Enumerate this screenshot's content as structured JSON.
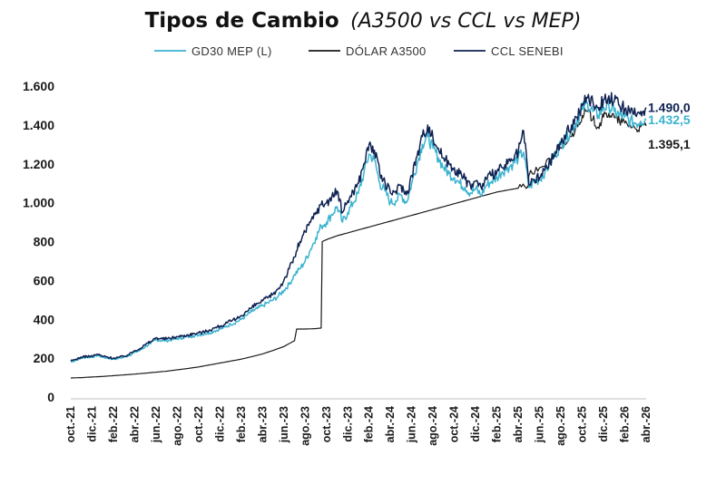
{
  "chart_data": {
    "type": "line",
    "title": "Tipos de Cambio",
    "subtitle": "(A3500 vs CCL vs MEP)",
    "xlabel": "",
    "ylabel": "",
    "ylim": [
      0,
      1600
    ],
    "yticks": [
      0,
      200,
      400,
      600,
      800,
      "1.000",
      "1.200",
      "1.400",
      "1.600"
    ],
    "ytick_labels": [
      "0",
      "200",
      "400",
      "600",
      "800",
      "1.000",
      "1.200",
      "1.400",
      "1.600"
    ],
    "x_start": "2021-10",
    "x_end": "2026-04",
    "xtick_labels": [
      "oct.-21",
      "dic.-21",
      "feb.-22",
      "abr.-22",
      "jun.-22",
      "ago.-22",
      "oct.-22",
      "dic.-22",
      "feb.-23",
      "abr.-23",
      "jun.-23",
      "ago.-23",
      "oct.-23",
      "dic.-23",
      "feb.-24",
      "abr.-24",
      "jun.-24",
      "ago.-24",
      "oct.-24",
      "dic.-24",
      "feb.-25",
      "abr.-25",
      "jun.-25",
      "ago.-25",
      "oct.-25",
      "dic.-25",
      "feb.-26",
      "abr.-26"
    ],
    "legend_position": "top",
    "grid": false,
    "series": [
      {
        "name": "GD30 MEP (L)",
        "color": "#3bb3d0",
        "points": [
          [
            0,
            180
          ],
          [
            0.5,
            190
          ],
          [
            1,
            200
          ],
          [
            1.5,
            205
          ],
          [
            2,
            205
          ],
          [
            2.5,
            215
          ],
          [
            3,
            205
          ],
          [
            3.5,
            200
          ],
          [
            4,
            195
          ],
          [
            4.5,
            200
          ],
          [
            5,
            205
          ],
          [
            5.5,
            215
          ],
          [
            6,
            230
          ],
          [
            6.5,
            240
          ],
          [
            7,
            260
          ],
          [
            7.5,
            275
          ],
          [
            8,
            295
          ],
          [
            8.5,
            290
          ],
          [
            9,
            290
          ],
          [
            9.5,
            295
          ],
          [
            10,
            300
          ],
          [
            10.5,
            305
          ],
          [
            11,
            310
          ],
          [
            11.5,
            315
          ],
          [
            12,
            320
          ],
          [
            12.5,
            325
          ],
          [
            13,
            330
          ],
          [
            13.5,
            340
          ],
          [
            14,
            350
          ],
          [
            14.5,
            360
          ],
          [
            15,
            375
          ],
          [
            15.5,
            385
          ],
          [
            16,
            400
          ],
          [
            16.5,
            420
          ],
          [
            17,
            440
          ],
          [
            17.5,
            455
          ],
          [
            18,
            470
          ],
          [
            18.5,
            485
          ],
          [
            19,
            500
          ],
          [
            19.5,
            520
          ],
          [
            20,
            550
          ],
          [
            20.5,
            580
          ],
          [
            21,
            630
          ],
          [
            21.5,
            660
          ],
          [
            22,
            700
          ],
          [
            22.5,
            760
          ],
          [
            23,
            820
          ],
          [
            23.5,
            880
          ],
          [
            24,
            900
          ],
          [
            24.5,
            940
          ],
          [
            25,
            980
          ],
          [
            25.5,
            900
          ],
          [
            26,
            950
          ],
          [
            26.5,
            1000
          ],
          [
            27,
            1050
          ],
          [
            27.5,
            1150
          ],
          [
            28,
            1250
          ],
          [
            28.5,
            1220
          ],
          [
            29,
            1100
          ],
          [
            29.5,
            1060
          ],
          [
            30,
            1000
          ],
          [
            30.5,
            1010
          ],
          [
            31,
            1040
          ],
          [
            31.5,
            1000
          ],
          [
            32,
            1100
          ],
          [
            32.5,
            1200
          ],
          [
            33,
            1300
          ],
          [
            33.5,
            1340
          ],
          [
            34,
            1280
          ],
          [
            34.5,
            1230
          ],
          [
            35,
            1180
          ],
          [
            35.5,
            1150
          ],
          [
            36,
            1130
          ],
          [
            36.5,
            1100
          ],
          [
            37,
            1080
          ],
          [
            37.5,
            1050
          ],
          [
            38,
            1070
          ],
          [
            38.5,
            1040
          ],
          [
            39,
            1090
          ],
          [
            39.5,
            1110
          ],
          [
            40,
            1130
          ],
          [
            40.5,
            1160
          ],
          [
            41,
            1180
          ],
          [
            41.5,
            1200
          ],
          [
            42,
            1230
          ],
          [
            42.5,
            1260
          ],
          [
            43,
            1080
          ],
          [
            43.5,
            1110
          ],
          [
            44,
            1120
          ],
          [
            44.5,
            1160
          ],
          [
            45,
            1200
          ],
          [
            45.5,
            1250
          ],
          [
            46,
            1300
          ],
          [
            46.5,
            1330
          ],
          [
            47,
            1380
          ],
          [
            47.5,
            1420
          ],
          [
            48,
            1480
          ],
          [
            48.5,
            1510
          ],
          [
            49,
            1470
          ],
          [
            49.5,
            1450
          ],
          [
            50,
            1490
          ],
          [
            50.5,
            1500
          ],
          [
            51,
            1470
          ],
          [
            51.5,
            1450
          ],
          [
            52,
            1440
          ],
          [
            52.5,
            1420
          ],
          [
            53,
            1410
          ],
          [
            53.5,
            1420
          ],
          [
            54,
            1432.5
          ]
        ]
      },
      {
        "name": "DÓLAR A3500",
        "color": "#1a1a1a",
        "points": [
          [
            0,
            98
          ],
          [
            1,
            100
          ],
          [
            2,
            103
          ],
          [
            3,
            106
          ],
          [
            4,
            110
          ],
          [
            5,
            114
          ],
          [
            6,
            118
          ],
          [
            7,
            123
          ],
          [
            8,
            128
          ],
          [
            9,
            133
          ],
          [
            10,
            140
          ],
          [
            11,
            147
          ],
          [
            12,
            155
          ],
          [
            13,
            165
          ],
          [
            14,
            175
          ],
          [
            15,
            185
          ],
          [
            16,
            195
          ],
          [
            17,
            208
          ],
          [
            18,
            222
          ],
          [
            19,
            240
          ],
          [
            20,
            260
          ],
          [
            21,
            290
          ],
          [
            21.2,
            350
          ],
          [
            22,
            350
          ],
          [
            23,
            352
          ],
          [
            23.5,
            355
          ],
          [
            23.6,
            800
          ],
          [
            24,
            810
          ],
          [
            25,
            830
          ],
          [
            26,
            845
          ],
          [
            27,
            860
          ],
          [
            28,
            875
          ],
          [
            29,
            890
          ],
          [
            30,
            905
          ],
          [
            31,
            920
          ],
          [
            32,
            935
          ],
          [
            33,
            950
          ],
          [
            34,
            965
          ],
          [
            35,
            980
          ],
          [
            36,
            995
          ],
          [
            37,
            1010
          ],
          [
            38,
            1025
          ],
          [
            39,
            1040
          ],
          [
            40,
            1055
          ],
          [
            41,
            1065
          ],
          [
            42,
            1075
          ],
          [
            42.9,
            1085
          ],
          [
            43,
            1140
          ],
          [
            44,
            1180
          ],
          [
            45,
            1220
          ],
          [
            46,
            1280
          ],
          [
            47,
            1340
          ],
          [
            47.5,
            1400
          ],
          [
            48,
            1450
          ],
          [
            48.5,
            1470
          ],
          [
            49,
            1430
          ],
          [
            49.5,
            1390
          ],
          [
            50,
            1440
          ],
          [
            50.5,
            1460
          ],
          [
            51,
            1440
          ],
          [
            51.5,
            1420
          ],
          [
            52,
            1410
          ],
          [
            52.5,
            1400
          ],
          [
            53,
            1380
          ],
          [
            53.5,
            1390
          ],
          [
            54,
            1395.1
          ]
        ]
      },
      {
        "name": "CCL SENEBI",
        "color": "#0f2252",
        "points": [
          [
            0,
            185
          ],
          [
            0.5,
            195
          ],
          [
            1,
            205
          ],
          [
            1.5,
            210
          ],
          [
            2,
            210
          ],
          [
            2.5,
            220
          ],
          [
            3,
            210
          ],
          [
            3.5,
            205
          ],
          [
            4,
            200
          ],
          [
            4.5,
            205
          ],
          [
            5,
            210
          ],
          [
            5.5,
            220
          ],
          [
            6,
            240
          ],
          [
            6.5,
            250
          ],
          [
            7,
            270
          ],
          [
            7.5,
            285
          ],
          [
            8,
            305
          ],
          [
            8.5,
            300
          ],
          [
            9,
            300
          ],
          [
            9.5,
            305
          ],
          [
            10,
            310
          ],
          [
            10.5,
            315
          ],
          [
            11,
            320
          ],
          [
            11.5,
            325
          ],
          [
            12,
            330
          ],
          [
            12.5,
            335
          ],
          [
            13,
            345
          ],
          [
            13.5,
            355
          ],
          [
            14,
            365
          ],
          [
            14.5,
            375
          ],
          [
            15,
            390
          ],
          [
            15.5,
            400
          ],
          [
            16,
            420
          ],
          [
            16.5,
            440
          ],
          [
            17,
            460
          ],
          [
            17.5,
            480
          ],
          [
            18,
            495
          ],
          [
            18.5,
            510
          ],
          [
            19,
            530
          ],
          [
            19.5,
            560
          ],
          [
            20,
            600
          ],
          [
            20.5,
            660
          ],
          [
            21,
            720
          ],
          [
            21.5,
            800
          ],
          [
            22,
            850
          ],
          [
            22.5,
            900
          ],
          [
            23,
            950
          ],
          [
            23.5,
            990
          ],
          [
            24,
            1000
          ],
          [
            24.5,
            1030
          ],
          [
            25,
            1060
          ],
          [
            25.5,
            950
          ],
          [
            26,
            1010
          ],
          [
            26.5,
            1060
          ],
          [
            27,
            1100
          ],
          [
            27.5,
            1200
          ],
          [
            28,
            1300
          ],
          [
            28.5,
            1270
          ],
          [
            29,
            1150
          ],
          [
            29.5,
            1100
          ],
          [
            30,
            1050
          ],
          [
            30.5,
            1060
          ],
          [
            31,
            1090
          ],
          [
            31.5,
            1040
          ],
          [
            32,
            1140
          ],
          [
            32.5,
            1240
          ],
          [
            33,
            1340
          ],
          [
            33.5,
            1400
          ],
          [
            34,
            1330
          ],
          [
            34.5,
            1280
          ],
          [
            35,
            1230
          ],
          [
            35.5,
            1200
          ],
          [
            36,
            1180
          ],
          [
            36.5,
            1150
          ],
          [
            37,
            1120
          ],
          [
            37.5,
            1090
          ],
          [
            38,
            1110
          ],
          [
            38.5,
            1080
          ],
          [
            39,
            1120
          ],
          [
            39.5,
            1140
          ],
          [
            40,
            1160
          ],
          [
            40.5,
            1180
          ],
          [
            41,
            1200
          ],
          [
            41.5,
            1220
          ],
          [
            42,
            1260
          ],
          [
            42.5,
            1370
          ],
          [
            43,
            1090
          ],
          [
            43.5,
            1120
          ],
          [
            44,
            1130
          ],
          [
            44.5,
            1170
          ],
          [
            45,
            1210
          ],
          [
            45.5,
            1260
          ],
          [
            46,
            1310
          ],
          [
            46.5,
            1350
          ],
          [
            47,
            1400
          ],
          [
            47.5,
            1440
          ],
          [
            48,
            1500
          ],
          [
            48.5,
            1540
          ],
          [
            49,
            1520
          ],
          [
            49.5,
            1490
          ],
          [
            50,
            1530
          ],
          [
            50.5,
            1550
          ],
          [
            51,
            1520
          ],
          [
            51.5,
            1500
          ],
          [
            52,
            1480
          ],
          [
            52.5,
            1460
          ],
          [
            53,
            1450
          ],
          [
            53.5,
            1470
          ],
          [
            54,
            1490.0
          ]
        ]
      }
    ],
    "end_labels": [
      {
        "series": "CCL SENEBI",
        "text": "1.490,0",
        "value": 1490.0,
        "color": "#0f2252"
      },
      {
        "series": "GD30 MEP (L)",
        "text": "1.432,5",
        "value": 1432.5,
        "color": "#3bb3d0"
      },
      {
        "series": "DÓLAR A3500",
        "text": "1.395,1",
        "value": 1395.1,
        "color": "#1a1a1a"
      }
    ]
  }
}
